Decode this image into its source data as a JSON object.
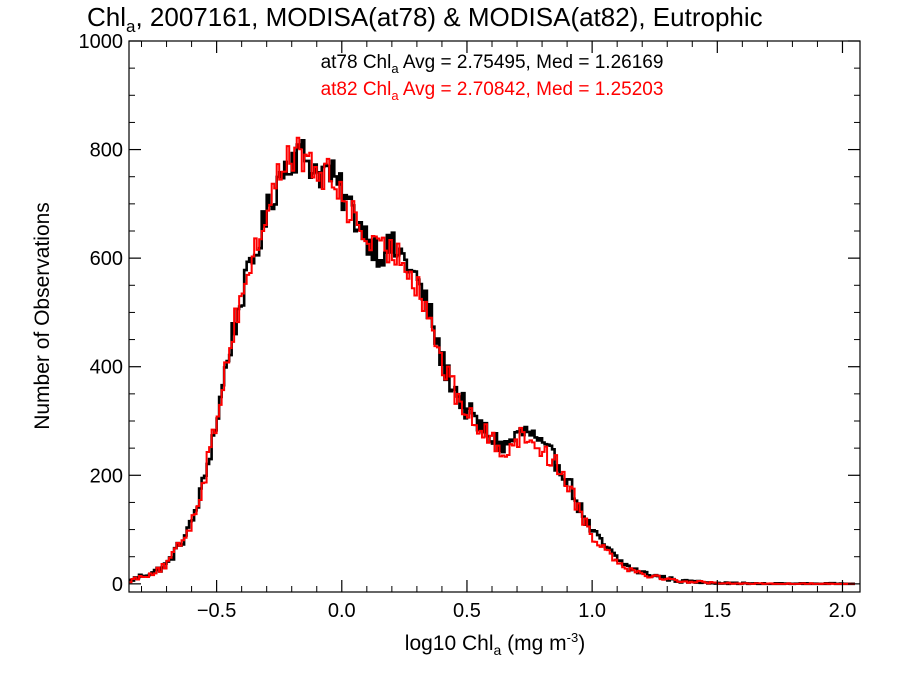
{
  "chart_data": {
    "type": "line",
    "style": "step-histogram",
    "title": {
      "prefix": "Chl",
      "sub": "a",
      "rest": ", 2007161, MODISA(at78) & MODISA(at82), Eutrophic"
    },
    "xlabel": {
      "prefix": "log10 Chl",
      "sub": "a",
      "mid": " (mg m",
      "sup": "-3",
      "suffix": ")"
    },
    "ylabel": "Number of Observations",
    "xlim": [
      -0.85,
      2.07
    ],
    "ylim": [
      -15,
      1000
    ],
    "xticks": [
      -0.5,
      0.0,
      0.5,
      1.0,
      1.5,
      2.0
    ],
    "xtick_labels": [
      "−0.5",
      "0.0",
      "0.5",
      "1.0",
      "1.5",
      "2.0"
    ],
    "yticks": [
      0,
      200,
      400,
      600,
      800,
      1000
    ],
    "ytick_labels": [
      "0",
      "200",
      "400",
      "600",
      "800",
      "1000"
    ],
    "grid": false,
    "annotations": [
      {
        "prefix": "at78 Chl",
        "sub": "a",
        "rest": " Avg = 2.75495, Med = 1.26169",
        "color": "#000000"
      },
      {
        "prefix": "at82 Chl",
        "sub": "a",
        "rest": " Avg = 2.70842, Med = 1.25203",
        "color": "#ff0000"
      }
    ],
    "series": [
      {
        "color": "#000000",
        "x": [
          -0.85,
          -0.8,
          -0.75,
          -0.7,
          -0.65,
          -0.6,
          -0.55,
          -0.5,
          -0.45,
          -0.4,
          -0.35,
          -0.3,
          -0.25,
          -0.2,
          -0.15,
          -0.1,
          -0.05,
          0.0,
          0.05,
          0.1,
          0.15,
          0.2,
          0.25,
          0.3,
          0.35,
          0.4,
          0.45,
          0.5,
          0.55,
          0.6,
          0.65,
          0.7,
          0.75,
          0.8,
          0.85,
          0.9,
          0.95,
          1.0,
          1.05,
          1.1,
          1.15,
          1.2,
          1.25,
          1.3,
          1.35,
          1.4,
          1.45,
          1.5,
          1.55,
          1.6,
          1.65,
          1.7,
          1.75,
          1.8,
          1.85,
          1.9,
          1.95,
          2.0,
          2.05
        ],
        "y": [
          5,
          15,
          22,
          35,
          70,
          110,
          190,
          300,
          430,
          530,
          600,
          680,
          750,
          790,
          790,
          760,
          760,
          720,
          680,
          640,
          610,
          620,
          600,
          560,
          500,
          410,
          360,
          320,
          290,
          270,
          250,
          275,
          280,
          250,
          230,
          195,
          140,
          95,
          70,
          45,
          30,
          20,
          15,
          10,
          5,
          4,
          3,
          2,
          1,
          1,
          0,
          0,
          0,
          0,
          0,
          0,
          0,
          0,
          0
        ],
        "jitter": 12
      },
      {
        "color": "#ff0000",
        "x": [
          -0.85,
          -0.8,
          -0.75,
          -0.7,
          -0.65,
          -0.6,
          -0.55,
          -0.5,
          -0.45,
          -0.4,
          -0.35,
          -0.3,
          -0.25,
          -0.2,
          -0.15,
          -0.1,
          -0.05,
          0.0,
          0.05,
          0.1,
          0.15,
          0.2,
          0.25,
          0.3,
          0.35,
          0.4,
          0.45,
          0.5,
          0.55,
          0.6,
          0.65,
          0.7,
          0.75,
          0.8,
          0.85,
          0.9,
          0.95,
          1.0,
          1.05,
          1.1,
          1.15,
          1.2,
          1.25,
          1.3,
          1.35,
          1.4,
          1.45,
          1.5,
          1.55,
          1.6,
          1.65,
          1.7,
          1.75,
          1.8,
          1.85,
          1.9,
          1.95,
          2.0,
          2.05
        ],
        "y": [
          5,
          14,
          21,
          34,
          70,
          112,
          192,
          305,
          435,
          535,
          605,
          685,
          755,
          795,
          785,
          755,
          750,
          715,
          675,
          635,
          608,
          615,
          595,
          555,
          495,
          405,
          355,
          315,
          285,
          265,
          245,
          268,
          272,
          245,
          225,
          190,
          135,
          90,
          66,
          43,
          28,
          19,
          14,
          9,
          5,
          4,
          3,
          2,
          1,
          1,
          0,
          0,
          0,
          0,
          0,
          0,
          0,
          0,
          0
        ],
        "jitter": 12
      }
    ]
  }
}
